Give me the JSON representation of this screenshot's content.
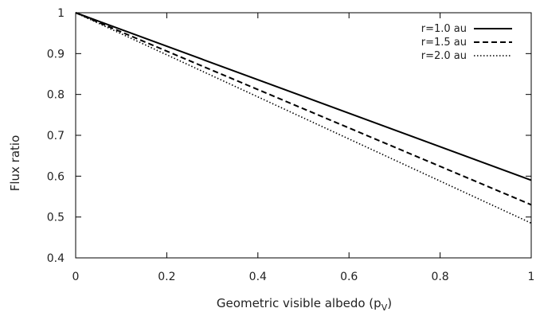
{
  "chart_data": {
    "type": "line",
    "title": "",
    "xlabel": "Geometric visible albedo (p",
    "xlabel_sub": "V",
    "xlabel_suffix": ")",
    "ylabel": "Flux ratio",
    "xlim": [
      0,
      1
    ],
    "ylim": [
      0.4,
      1
    ],
    "xticks": [
      0,
      0.2,
      0.4,
      0.6,
      0.8,
      1
    ],
    "xtick_labels": [
      "0",
      "0.2",
      "0.4",
      "0.6",
      "0.8",
      "1"
    ],
    "yticks": [
      0.4,
      0.5,
      0.6,
      0.7,
      0.8,
      0.9,
      1
    ],
    "ytick_labels": [
      "0.4",
      "0.5",
      "0.6",
      "0.7",
      "0.8",
      "0.9",
      "1"
    ],
    "grid": false,
    "legend_position": "top-right",
    "series": [
      {
        "name": "r=1.0 au",
        "style": "solid",
        "x": [
          0,
          1
        ],
        "y": [
          1.0,
          0.59
        ]
      },
      {
        "name": "r=1.5 au",
        "style": "dashed",
        "x": [
          0,
          1
        ],
        "y": [
          1.0,
          0.53
        ]
      },
      {
        "name": "r=2.0 au",
        "style": "dotted",
        "x": [
          0,
          1
        ],
        "y": [
          1.0,
          0.485
        ]
      }
    ],
    "colors": {
      "line": "#000000",
      "text": "#222222"
    }
  }
}
